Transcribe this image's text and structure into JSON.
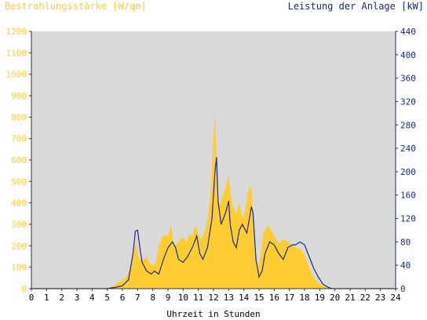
{
  "chart_data": {
    "type": "area",
    "title_left": "Bestrahlungsstärke [W/qm]",
    "title_right": "Leistung der Anlage [kW]",
    "xlabel": "Uhrzeit in Stunden",
    "xlim": [
      0,
      24
    ],
    "x_ticks": [
      "0",
      "1",
      "2",
      "3",
      "4",
      "5",
      "6",
      "7",
      "8",
      "9",
      "10",
      "11",
      "12",
      "13",
      "14",
      "15",
      "16",
      "17",
      "18",
      "19",
      "20",
      "21",
      "22",
      "23",
      "24"
    ],
    "y_left": {
      "range": [
        0,
        1200
      ],
      "ticks": [
        "0",
        "100",
        "200",
        "300",
        "400",
        "500",
        "600",
        "700",
        "800",
        "900",
        "1000",
        "1100",
        "1200"
      ]
    },
    "y_right": {
      "range": [
        0,
        440
      ],
      "ticks": [
        "0",
        "40",
        "80",
        "120",
        "160",
        "200",
        "240",
        "280",
        "320",
        "360",
        "400",
        "440"
      ]
    },
    "grid": false,
    "colors": {
      "plot_bg": "#d9d9d9",
      "irradiance": "#ffcc33",
      "power": "#1a2c7a",
      "left_axis_text": "#ffcc33",
      "right_axis_text": "#1a2c7a"
    },
    "series": [
      {
        "name": "Bestrahlungsstärke [W/qm]",
        "axis": "left",
        "style": "area",
        "x": [
          0,
          5,
          5.3,
          5.6,
          6.0,
          6.3,
          6.6,
          6.8,
          6.9,
          7.0,
          7.1,
          7.3,
          7.6,
          7.8,
          8.0,
          8.2,
          8.4,
          8.6,
          8.8,
          9.0,
          9.2,
          9.4,
          9.6,
          9.8,
          10.0,
          10.2,
          10.4,
          10.6,
          10.8,
          11.0,
          11.2,
          11.4,
          11.6,
          11.8,
          12.0,
          12.1,
          12.2,
          12.25,
          12.35,
          12.5,
          12.7,
          12.9,
          13.0,
          13.1,
          13.3,
          13.5,
          13.7,
          13.9,
          14.1,
          14.3,
          14.5,
          14.6,
          14.7,
          14.9,
          15.1,
          15.3,
          15.6,
          15.8,
          16.0,
          16.3,
          16.6,
          16.9,
          17.2,
          17.5,
          17.8,
          18.0,
          18.3,
          18.6,
          18.9,
          19.2,
          19.5,
          19.8,
          20.0,
          24
        ],
        "y": [
          0,
          0,
          10,
          25,
          40,
          60,
          110,
          190,
          215,
          170,
          140,
          130,
          150,
          120,
          110,
          120,
          200,
          240,
          250,
          245,
          295,
          200,
          210,
          230,
          240,
          220,
          250,
          245,
          300,
          250,
          230,
          260,
          320,
          420,
          700,
          830,
          570,
          420,
          380,
          410,
          450,
          500,
          530,
          450,
          380,
          350,
          400,
          330,
          360,
          460,
          480,
          320,
          200,
          90,
          150,
          260,
          300,
          270,
          250,
          210,
          230,
          220,
          200,
          190,
          180,
          160,
          100,
          50,
          30,
          15,
          5,
          0,
          0,
          0
        ]
      },
      {
        "name": "Leistung der Anlage [kW]",
        "axis": "right",
        "style": "line",
        "x": [
          0,
          5,
          5.5,
          6.0,
          6.4,
          6.7,
          6.85,
          7.0,
          7.15,
          7.3,
          7.6,
          7.9,
          8.1,
          8.4,
          8.7,
          9.0,
          9.3,
          9.5,
          9.7,
          10.0,
          10.3,
          10.6,
          10.9,
          11.1,
          11.3,
          11.6,
          11.9,
          12.1,
          12.2,
          12.3,
          12.5,
          12.8,
          13.0,
          13.1,
          13.3,
          13.5,
          13.7,
          13.9,
          14.2,
          14.5,
          14.6,
          14.8,
          15.0,
          15.2,
          15.4,
          15.7,
          16.0,
          16.3,
          16.6,
          16.9,
          17.2,
          17.4,
          17.7,
          18.0,
          18.3,
          18.6,
          18.9,
          19.2,
          19.5,
          19.8,
          20.0,
          24
        ],
        "y": [
          0,
          0,
          2,
          5,
          15,
          60,
          98,
          100,
          70,
          45,
          30,
          25,
          30,
          25,
          50,
          70,
          80,
          70,
          50,
          45,
          55,
          70,
          90,
          60,
          50,
          70,
          120,
          200,
          225,
          150,
          110,
          130,
          150,
          110,
          80,
          70,
          100,
          110,
          95,
          140,
          130,
          50,
          20,
          30,
          60,
          80,
          75,
          60,
          50,
          70,
          75,
          75,
          80,
          75,
          55,
          35,
          20,
          8,
          3,
          0,
          0,
          0
        ]
      }
    ]
  }
}
